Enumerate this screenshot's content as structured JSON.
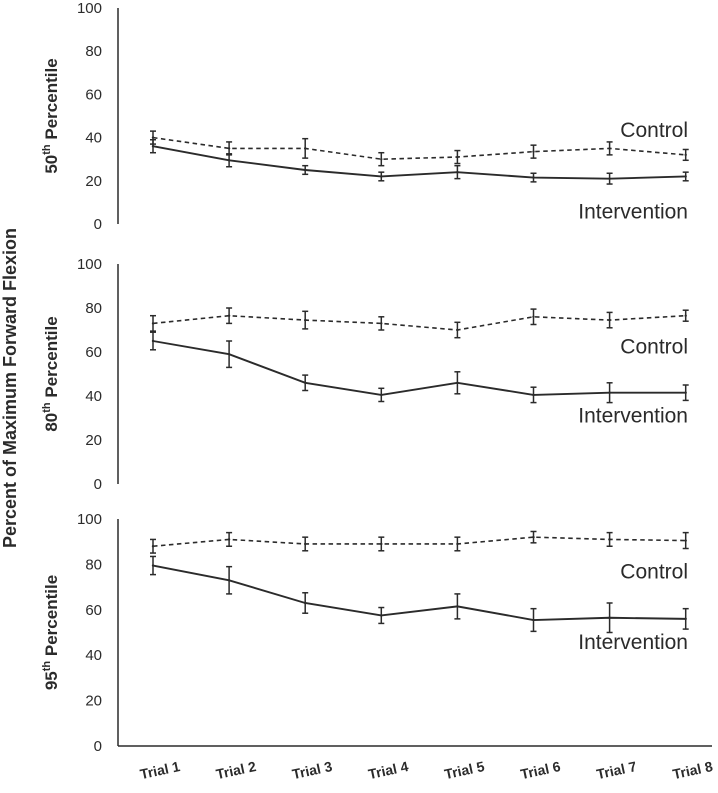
{
  "chart_data": {
    "type": "line",
    "ylabel": "Percent of Maximum Forward Flexion",
    "categories": [
      "Trial 1",
      "Trial 2",
      "Trial 3",
      "Trial 4",
      "Trial 5",
      "Trial 6",
      "Trial 7",
      "Trial 8"
    ],
    "panels": [
      {
        "label_main": "50",
        "label_sup": "th",
        "label_rest": " Percentile",
        "ylim": [
          0,
          100
        ],
        "yticks": [
          "0",
          "20",
          "40",
          "60",
          "80",
          "100"
        ],
        "series": [
          {
            "name": "Control",
            "style": "dashed",
            "values": [
              40,
              35,
              35,
              30,
              31,
              33.5,
              35,
              32
            ],
            "errors": [
              3,
              3,
              4.5,
              3,
              3,
              3,
              3,
              2.5
            ]
          },
          {
            "name": "Intervention",
            "style": "solid",
            "values": [
              36,
              29.5,
              25,
              22,
              24,
              21.5,
              21,
              22
            ],
            "errors": [
              3,
              3,
              2,
              2,
              3,
              2,
              2.5,
              2
            ]
          }
        ]
      },
      {
        "label_main": "80",
        "label_sup": "th",
        "label_rest": " Percentile",
        "ylim": [
          0,
          100
        ],
        "yticks": [
          "0",
          "20",
          "40",
          "60",
          "80",
          "100"
        ],
        "series": [
          {
            "name": "Control",
            "style": "dashed",
            "values": [
              73,
              76.5,
              74.5,
              73,
              70,
              76,
              74.5,
              76.5
            ],
            "errors": [
              3.5,
              3.5,
              4,
              3,
              3.5,
              3.5,
              3.5,
              2.5
            ]
          },
          {
            "name": "Intervention",
            "style": "solid",
            "values": [
              65,
              59,
              46,
              40.5,
              46,
              40.5,
              41.5,
              41.5
            ],
            "errors": [
              4,
              6,
              3.5,
              3,
              5,
              3.5,
              4.5,
              3.5
            ]
          }
        ]
      },
      {
        "label_main": "95",
        "label_sup": "th",
        "label_rest": " Percentile",
        "ylim": [
          0,
          100
        ],
        "yticks": [
          "0",
          "20",
          "40",
          "60",
          "80",
          "100"
        ],
        "series": [
          {
            "name": "Control",
            "style": "dashed",
            "values": [
              88,
              91,
              89,
              89,
              89,
              92,
              91,
              90.5
            ],
            "errors": [
              3,
              3,
              3,
              3,
              3,
              2.5,
              3,
              3.5
            ]
          },
          {
            "name": "Intervention",
            "style": "solid",
            "values": [
              79.5,
              73,
              63,
              57.5,
              61.5,
              55.5,
              56.5,
              56
            ],
            "errors": [
              4,
              6,
              4.5,
              3.5,
              5.5,
              5,
              6.5,
              4.5
            ]
          }
        ]
      }
    ]
  }
}
